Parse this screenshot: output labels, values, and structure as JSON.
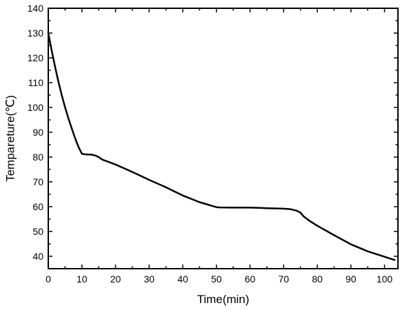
{
  "chart_data": {
    "type": "line",
    "title": "",
    "xlabel": "Time(min)",
    "ylabel": "Temparetur​e(°C)",
    "ylabel_display": "Temparet​ure(°C)",
    "xlim": [
      0,
      104
    ],
    "ylim": [
      35,
      140
    ],
    "xticks": [
      0,
      10,
      20,
      30,
      40,
      50,
      60,
      70,
      80,
      90,
      100
    ],
    "xtick_labels": [
      "0",
      "10",
      "20",
      "30",
      "40",
      "50",
      "60",
      "70",
      "80",
      "90",
      "100"
    ],
    "yticks": [
      40,
      50,
      60,
      70,
      80,
      90,
      100,
      110,
      120,
      130,
      140
    ],
    "ytick_labels": [
      "40",
      "50",
      "60",
      "70",
      "80",
      "90",
      "100",
      "110",
      "120",
      "130",
      "140"
    ],
    "grid": false,
    "line_color": "#000000",
    "series": [
      {
        "x": [
          0,
          1,
          2,
          3,
          4,
          5,
          6,
          7,
          8,
          9,
          10,
          11,
          12,
          12.7,
          14,
          15,
          16,
          18,
          20,
          25,
          30,
          35,
          40,
          45,
          50,
          51,
          55,
          60,
          63,
          65,
          70,
          72,
          74,
          75,
          76,
          78,
          80,
          85,
          90,
          95,
          100,
          103
        ],
        "values": [
          130,
          123,
          116.5,
          110.5,
          105,
          100,
          95.5,
          91.5,
          87.5,
          84,
          81.3,
          81.1,
          81,
          81,
          80.6,
          80,
          79,
          78,
          77,
          74,
          70.8,
          67.8,
          64.5,
          61.8,
          59.8,
          59.7,
          59.6,
          59.6,
          59.5,
          59.4,
          59.2,
          59,
          58.3,
          57.6,
          56,
          54,
          52.3,
          48.5,
          44.8,
          42,
          39.8,
          38.5
        ]
      }
    ]
  }
}
